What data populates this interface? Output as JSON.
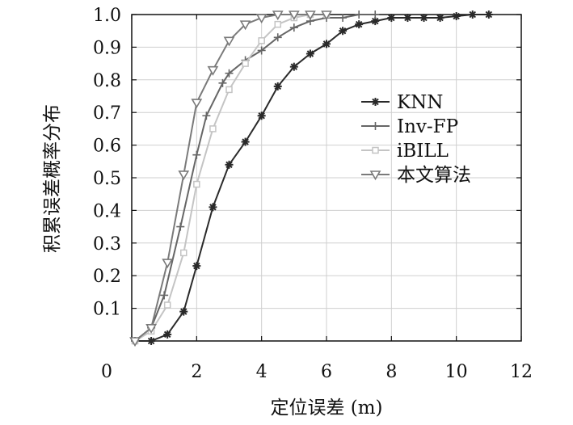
{
  "chart_data": {
    "type": "line",
    "xlabel": "定位误差 (m)",
    "ylabel": "积累误差概率分布",
    "xlim": [
      0,
      12
    ],
    "ylim": [
      0,
      1.0
    ],
    "x_ticks": [
      "0",
      "2",
      "4",
      "6",
      "8",
      "10",
      "12"
    ],
    "y_ticks": [
      "0.1",
      "0.2",
      "0.3",
      "0.4",
      "0.5",
      "0.6",
      "0.7",
      "0.8",
      "0.9",
      "1.0"
    ],
    "grid": true,
    "legend_position": "right-center",
    "series": [
      {
        "name": "KNN",
        "color": "#2a2a2a",
        "marker": "asterisk",
        "x": [
          0.1,
          0.6,
          1.1,
          1.6,
          2.0,
          2.5,
          3.0,
          3.5,
          4.0,
          4.5,
          5.0,
          5.5,
          6.0,
          6.5,
          7.0,
          7.5,
          8.0,
          8.5,
          9.0,
          9.5,
          10.0,
          10.5,
          11.0
        ],
        "y": [
          0.0,
          0.0,
          0.02,
          0.09,
          0.23,
          0.41,
          0.54,
          0.61,
          0.69,
          0.78,
          0.84,
          0.88,
          0.91,
          0.95,
          0.97,
          0.98,
          0.99,
          0.99,
          0.99,
          0.99,
          0.995,
          1.0,
          1.0
        ]
      },
      {
        "name": "Inv-FP",
        "color": "#666666",
        "marker": "plus",
        "x": [
          0.1,
          0.6,
          1.0,
          1.5,
          2.0,
          2.3,
          2.8,
          3.0,
          3.5,
          4.0,
          4.5,
          5.0,
          5.5,
          6.0,
          6.5,
          7.0,
          7.5
        ],
        "y": [
          0.0,
          0.04,
          0.14,
          0.35,
          0.57,
          0.69,
          0.79,
          0.82,
          0.86,
          0.89,
          0.93,
          0.96,
          0.98,
          0.99,
          0.99,
          1.0,
          1.0
        ]
      },
      {
        "name": "iBILL",
        "color": "#c4c4c4",
        "marker": "square",
        "x": [
          0.1,
          0.6,
          1.1,
          1.6,
          2.0,
          2.5,
          3.0,
          3.5,
          4.0,
          4.5,
          5.0,
          5.5,
          6.0
        ],
        "y": [
          0.0,
          0.03,
          0.11,
          0.27,
          0.48,
          0.65,
          0.77,
          0.85,
          0.92,
          0.97,
          0.99,
          1.0,
          1.0
        ]
      },
      {
        "name": "本文算法",
        "color": "#7a7a7a",
        "marker": "triangle-down",
        "x": [
          0.1,
          0.6,
          1.1,
          1.6,
          2.0,
          2.5,
          3.0,
          3.5,
          4.0,
          4.5,
          5.0,
          5.5,
          6.0
        ],
        "y": [
          0.0,
          0.04,
          0.24,
          0.51,
          0.73,
          0.83,
          0.92,
          0.97,
          0.99,
          1.0,
          1.0,
          1.0,
          1.0
        ]
      }
    ]
  }
}
